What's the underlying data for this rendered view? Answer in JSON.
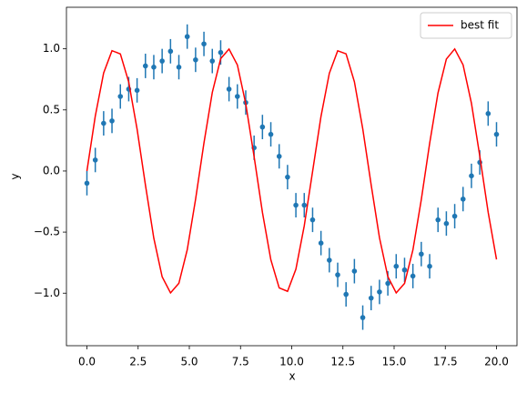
{
  "chart_data": {
    "type": "errorbar",
    "x": [
      0,
      0.408,
      0.816,
      1.224,
      1.633,
      2.041,
      2.449,
      2.857,
      3.265,
      3.673,
      4.082,
      4.49,
      4.898,
      5.306,
      5.714,
      6.122,
      6.531,
      6.939,
      7.347,
      7.755,
      8.163,
      8.571,
      8.98,
      9.388,
      9.796,
      10.204,
      10.612,
      11.02,
      11.429,
      11.837,
      12.245,
      12.653,
      13.061,
      13.469,
      13.878,
      14.286,
      14.694,
      15.102,
      15.51,
      15.918,
      16.327,
      16.735,
      17.143,
      17.551,
      17.959,
      18.367,
      18.776,
      19.184,
      19.592,
      20
    ],
    "series": [
      {
        "type": "errorbar",
        "color": "#1f77b4",
        "values": [
          -0.1,
          0.09,
          0.39,
          0.41,
          0.61,
          0.67,
          0.66,
          0.86,
          0.85,
          0.9,
          0.98,
          0.85,
          1.1,
          0.91,
          1.04,
          0.9,
          0.97,
          0.67,
          0.61,
          0.56,
          0.19,
          0.36,
          0.3,
          0.12,
          -0.05,
          -0.28,
          -0.28,
          -0.4,
          -0.59,
          -0.73,
          -0.85,
          -1.01,
          -0.82,
          -1.2,
          -1.04,
          -0.99,
          -0.92,
          -0.78,
          -0.81,
          -0.86,
          -0.68,
          -0.78,
          -0.4,
          -0.43,
          -0.37,
          -0.23,
          -0.04,
          0.07,
          0.47,
          0.3
        ],
        "errors": [
          0.1,
          0.1,
          0.1,
          0.1,
          0.1,
          0.1,
          0.1,
          0.1,
          0.1,
          0.1,
          0.1,
          0.1,
          0.1,
          0.1,
          0.1,
          0.1,
          0.1,
          0.1,
          0.1,
          0.1,
          0.1,
          0.1,
          0.1,
          0.1,
          0.1,
          0.1,
          0.1,
          0.1,
          0.1,
          0.1,
          0.1,
          0.1,
          0.1,
          0.1,
          0.1,
          0.1,
          0.1,
          0.1,
          0.1,
          0.1,
          0.1,
          0.1,
          0.1,
          0.1,
          0.1,
          0.1,
          0.1,
          0.1,
          0.1,
          0.1
        ]
      },
      {
        "type": "line",
        "name": "best fit",
        "color": "red",
        "values": [
          0,
          0.449,
          0.802,
          0.985,
          0.958,
          0.728,
          0.343,
          -0.115,
          -0.549,
          -0.866,
          -0.998,
          -0.919,
          -0.645,
          -0.231,
          0.229,
          0.643,
          0.919,
          0.998,
          0.868,
          0.551,
          0.118,
          -0.34,
          -0.726,
          -0.957,
          -0.985,
          -0.804,
          -0.449,
          -0.003,
          0.446,
          0.8,
          0.984,
          0.959,
          0.73,
          0.345,
          -0.112,
          -0.547,
          -0.865,
          -0.998,
          -0.92,
          -0.646,
          -0.235,
          0.226,
          0.639,
          0.916,
          0.999,
          0.869,
          0.554,
          0.122,
          -0.337,
          -0.724
        ]
      }
    ],
    "xlabel": "x",
    "ylabel": "y",
    "xlim": [
      -1,
      21
    ],
    "ylim": [
      -1.43,
      1.34
    ],
    "xticks": [
      {
        "value": 0,
        "label": "0.0"
      },
      2.5,
      {
        "value": 5,
        "label": "5.0"
      },
      7.5,
      {
        "value": 10,
        "label": "10.0"
      },
      12.5,
      {
        "value": 15,
        "label": "15.0"
      },
      17.5,
      {
        "value": 20,
        "label": "20.0"
      }
    ],
    "yticks": [
      {
        "value": -1,
        "label": "−1.0"
      },
      {
        "value": -0.5,
        "label": "−0.5"
      },
      {
        "value": 0,
        "label": "0.0"
      },
      0.5,
      {
        "value": 1,
        "label": "1.0"
      }
    ],
    "grid": false,
    "legend": "upper right"
  }
}
